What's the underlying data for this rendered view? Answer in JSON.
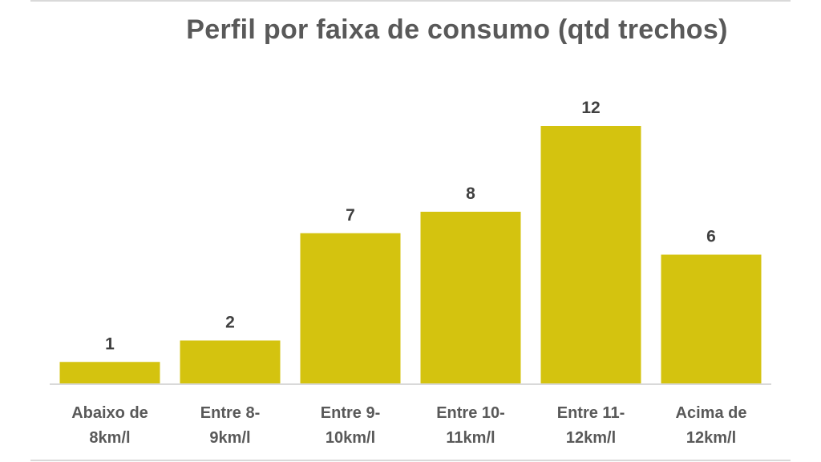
{
  "chart_data": {
    "type": "bar",
    "title": "Perfil por faixa de consumo (qtd trechos)",
    "categories": [
      [
        "Abaixo de",
        "8km/l"
      ],
      [
        "Entre 8-",
        "9km/l"
      ],
      [
        "Entre 9-",
        "10km/l"
      ],
      [
        "Entre 10-",
        "11km/l"
      ],
      [
        "Entre 11-",
        "12km/l"
      ],
      [
        "Acima de",
        "12km/l"
      ]
    ],
    "values": [
      1,
      2,
      7,
      8,
      12,
      6
    ],
    "data_labels": [
      "1",
      "2",
      "7",
      "8",
      "12",
      "6"
    ],
    "ylim": [
      0,
      12
    ],
    "grid": false,
    "legend": "none",
    "bar_color": "#d4c30f",
    "axis_color": "#d9d9d9"
  }
}
